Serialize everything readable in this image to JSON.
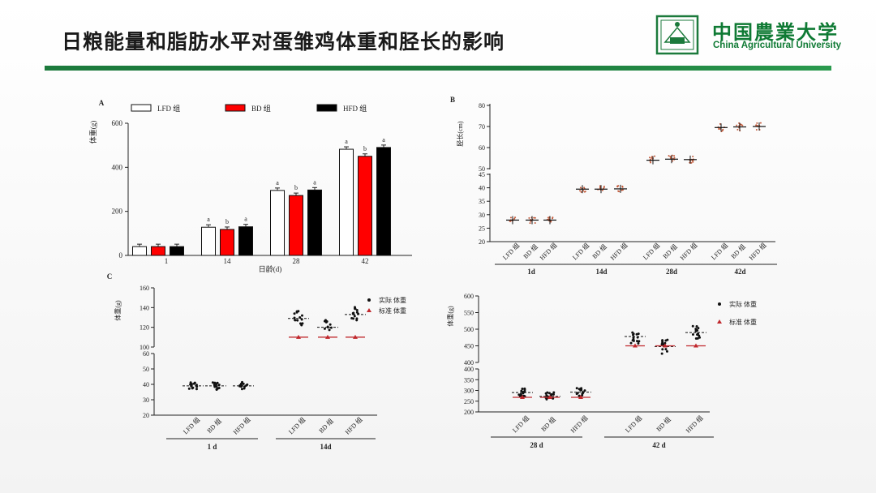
{
  "header": {
    "title": "日粮能量和脂肪水平对蛋雏鸡体重和胫长的影响",
    "university_cn": "中国農業大学",
    "university_en": "China Agricultural University",
    "logo_icon": "university-seal-icon"
  },
  "colors": {
    "brand_green": "#1c7a3c",
    "lfd": "#ffffff",
    "bd": "#ff0000",
    "hfd": "#000000",
    "standard": "#c0282d"
  },
  "chart_data": [
    {
      "panel": "A",
      "type": "bar",
      "ylabel": "体重(g)",
      "xlabel": "日龄(d)",
      "categories": [
        "1",
        "14",
        "28",
        "42"
      ],
      "ylim": [
        0,
        600
      ],
      "yticks": [
        "0",
        "200",
        "400",
        "600"
      ],
      "series": [
        {
          "name": "LFD 组",
          "values": [
            40,
            128,
            295,
            482
          ],
          "letters": [
            "",
            "a",
            "a",
            "a"
          ]
        },
        {
          "name": "BD 组",
          "values": [
            40,
            118,
            272,
            450
          ],
          "letters": [
            "",
            "b",
            "b",
            "b"
          ]
        },
        {
          "name": "HFD 组",
          "values": [
            40,
            130,
            297,
            490
          ],
          "letters": [
            "",
            "a",
            "a",
            "a"
          ]
        }
      ]
    },
    {
      "panel": "B",
      "type": "scatter",
      "ylabel": "胫长(cm)",
      "yticks_top": [
        "50",
        "60",
        "70",
        "80"
      ],
      "yticks_bottom": [
        "20",
        "25",
        "30",
        "35",
        "40",
        "45"
      ],
      "ylim_top": [
        50,
        80
      ],
      "ylim_bottom": [
        20,
        45
      ],
      "groups": [
        "LFD 组",
        "BD 组",
        "HFD 组"
      ],
      "days": [
        "1d",
        "14d",
        "28d",
        "42d"
      ],
      "means": [
        [
          28,
          28,
          28
        ],
        [
          39.5,
          39.5,
          39.6
        ],
        [
          54,
          54.5,
          54.3
        ],
        [
          69.5,
          69.8,
          70
        ]
      ]
    },
    {
      "panel": "C",
      "type": "scatter",
      "ylabel": "体重(g)",
      "legend": [
        "实际 体重",
        "标准 体重"
      ],
      "groups": [
        "LFD 组",
        "BD 组",
        "HFD 组"
      ],
      "sub": [
        {
          "yticks_top": [
            "100",
            "120",
            "140",
            "160"
          ],
          "yticks_bottom": [
            "20",
            "30",
            "40",
            "50",
            "60"
          ],
          "days": [
            "1 d",
            "14d"
          ],
          "actual": [
            [
              39,
              39,
              39
            ],
            [
              129,
              120,
              133
            ]
          ],
          "standard": [
            [
              null,
              null,
              null
            ],
            [
              110,
              110,
              110
            ]
          ]
        },
        {
          "yticks_top": [
            "400",
            "450",
            "500",
            "550",
            "600"
          ],
          "yticks_bottom": [
            "200",
            "250",
            "300",
            "350",
            "400"
          ],
          "days": [
            "28 d",
            "42 d"
          ],
          "actual": [
            [
              290,
              272,
              292
            ],
            [
              478,
              448,
              490
            ]
          ],
          "standard": [
            [
              268,
              268,
              268
            ],
            [
              450,
              450,
              450
            ]
          ]
        }
      ]
    }
  ]
}
